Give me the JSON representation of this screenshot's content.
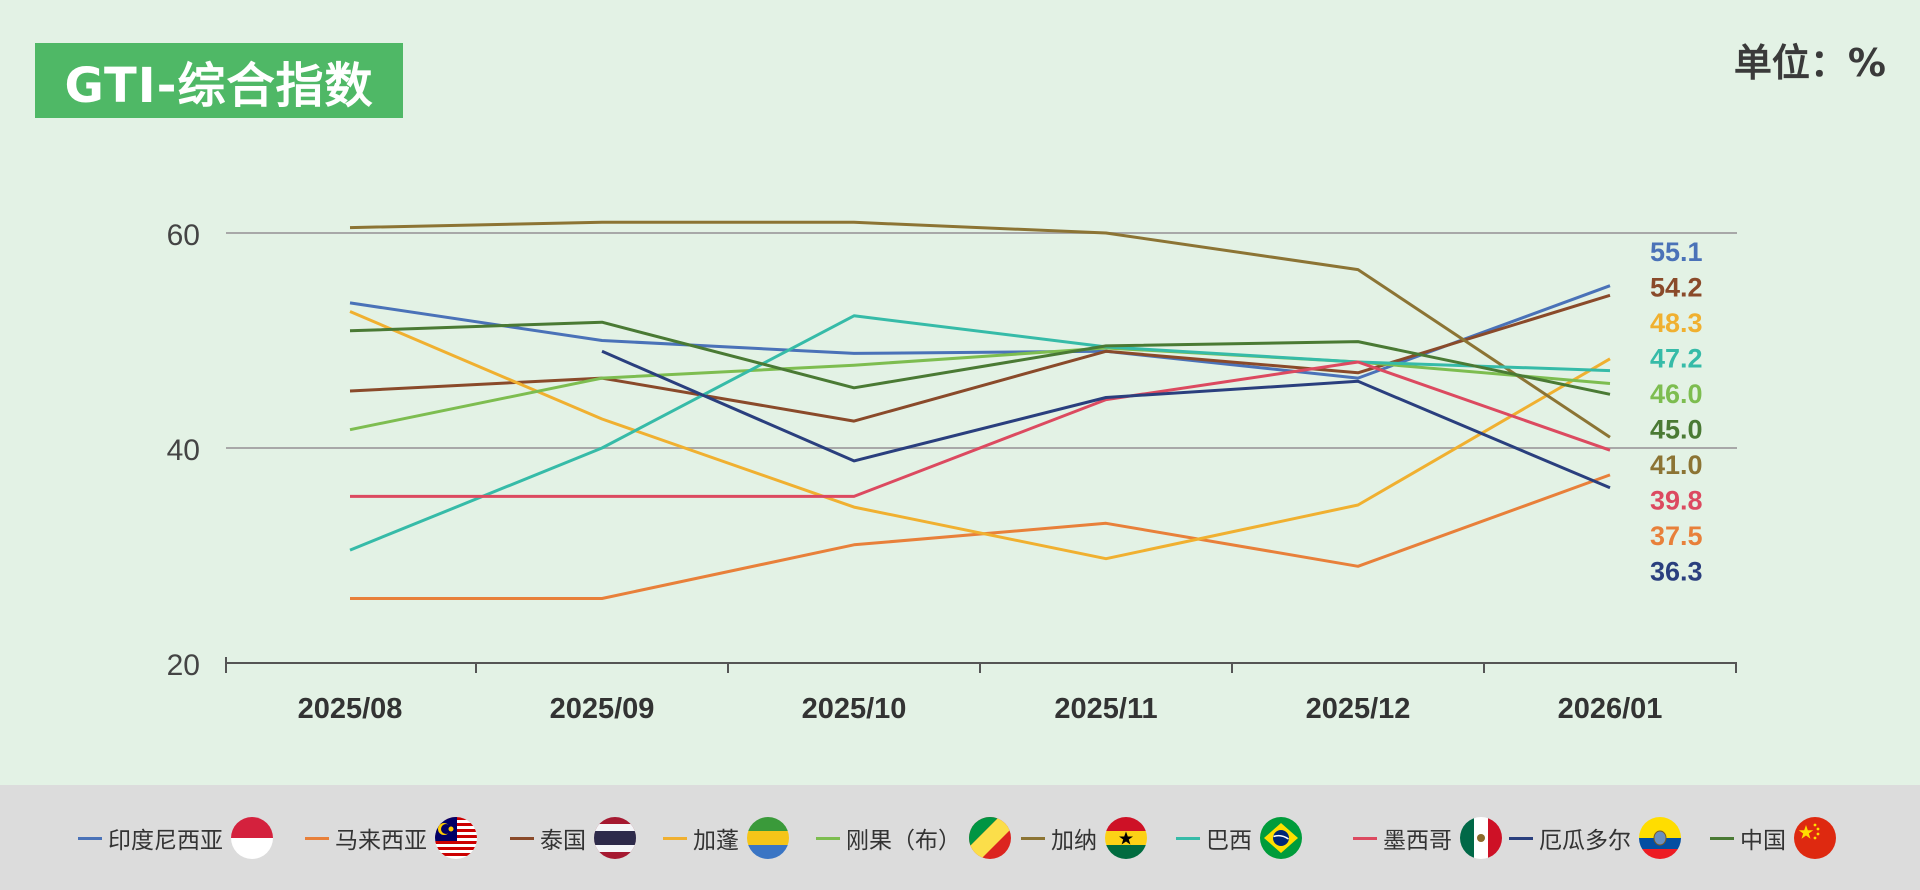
{
  "title": "GTI-综合指数",
  "unit": "单位：%",
  "chart_data": {
    "type": "line",
    "title": "GTI-综合指数",
    "categories": [
      "2025/08",
      "2025/09",
      "2025/10",
      "2025/11",
      "2025/12",
      "2026/01"
    ],
    "ylim": [
      20,
      60
    ],
    "yticks": [
      20,
      40,
      60
    ],
    "grid": true,
    "legend_position": "bottom",
    "series": [
      {
        "name": "印度尼西亚",
        "color": "#4a72b8",
        "values": [
          53.5,
          50.0,
          48.8,
          49.0,
          46.5,
          55.1
        ],
        "end_label": "55.1"
      },
      {
        "name": "马来西亚",
        "color": "#e8803a",
        "values": [
          26.0,
          26.0,
          31.0,
          33.0,
          29.0,
          37.5
        ],
        "end_label": "37.5"
      },
      {
        "name": "泰国",
        "color": "#8a4a2a",
        "values": [
          45.3,
          46.5,
          42.5,
          49.0,
          47.0,
          54.2
        ],
        "end_label": "54.2"
      },
      {
        "name": "加蓬",
        "color": "#f0b030",
        "values": [
          52.7,
          42.7,
          34.5,
          29.7,
          34.7,
          48.3
        ],
        "end_label": "48.3"
      },
      {
        "name": "刚果（布）",
        "color": "#7dbd50",
        "values": [
          41.7,
          46.5,
          47.7,
          49.3,
          48.0,
          46.0
        ],
        "end_label": "46.0"
      },
      {
        "name": "加纳",
        "color": "#8c7434",
        "values": [
          60.5,
          61.0,
          61.0,
          60.0,
          56.6,
          41.0
        ],
        "end_label": "41.0"
      },
      {
        "name": "巴西",
        "color": "#36bba8",
        "values": [
          30.5,
          40.0,
          52.3,
          49.4,
          48.0,
          47.2
        ],
        "end_label": "47.2"
      },
      {
        "name": "墨西哥",
        "color": "#dc4a60",
        "values": [
          35.5,
          35.5,
          35.5,
          44.5,
          48.0,
          39.8
        ],
        "end_label": "39.8"
      },
      {
        "name": "厄瓜多尔",
        "color": "#2a3f7e",
        "values": [
          null,
          49.0,
          38.8,
          44.7,
          46.2,
          36.3
        ],
        "end_label": "36.3"
      },
      {
        "name": "中国",
        "color": "#4a7a34",
        "values": [
          50.9,
          51.7,
          45.6,
          49.5,
          49.9,
          45.0
        ],
        "end_label": "45.0"
      }
    ]
  },
  "flags": {
    "印度尼西亚": "indonesia-flag-icon",
    "马来西亚": "malaysia-flag-icon",
    "泰国": "thailand-flag-icon",
    "加蓬": "gabon-flag-icon",
    "刚果（布）": "congo-flag-icon",
    "加纳": "ghana-flag-icon",
    "巴西": "brazil-flag-icon",
    "墨西哥": "mexico-flag-icon",
    "厄瓜多尔": "ecuador-flag-icon",
    "中国": "china-flag-icon"
  }
}
